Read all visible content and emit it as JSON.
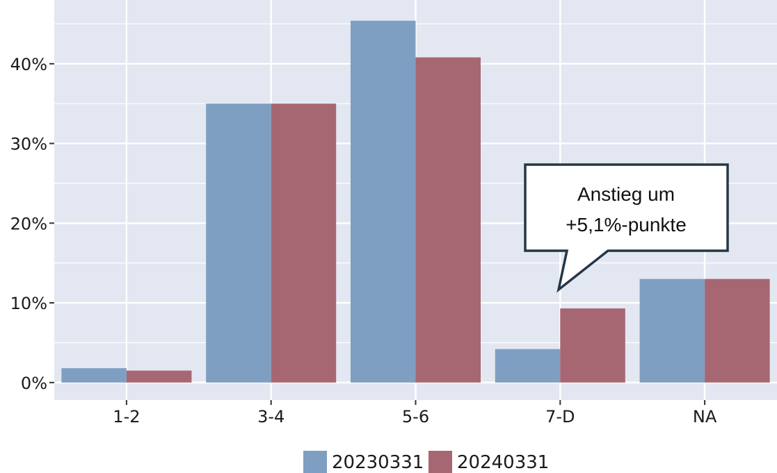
{
  "chart_data": {
    "type": "bar",
    "categories": [
      "1-2",
      "3-4",
      "5-6",
      "7-D",
      "NA"
    ],
    "series": [
      {
        "name": "20230331",
        "values": [
          1.8,
          35.0,
          45.4,
          4.2,
          13.0
        ],
        "color": "#7f9fc2"
      },
      {
        "name": "20240331",
        "values": [
          1.5,
          35.0,
          40.8,
          9.3,
          13.0
        ],
        "color": "#a76772"
      }
    ],
    "y_ticks": [
      0,
      10,
      20,
      30,
      40
    ],
    "y_tick_labels": [
      "0%",
      "10%",
      "20%",
      "30%",
      "40%"
    ],
    "ylim": [
      -2.2,
      48
    ],
    "grid": true,
    "legend_position": "bottom",
    "annotation": {
      "lines": [
        "Anstieg um",
        "+5,1%-punkte"
      ],
      "category": "7-D",
      "series": "20240331"
    },
    "panel_color": "#e3e7f1",
    "grid_color": "#ffffff"
  }
}
